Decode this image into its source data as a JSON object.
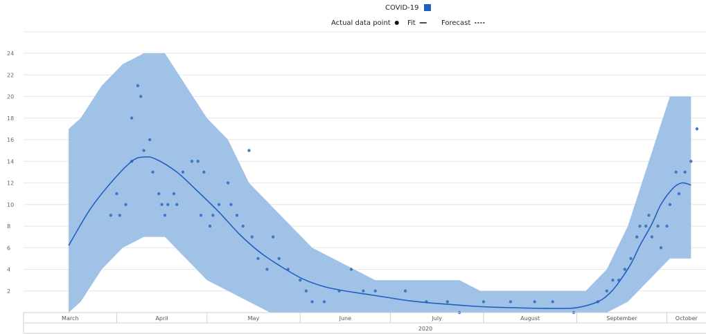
{
  "chart_data": {
    "type": "line",
    "legend": {
      "placement": "top-center",
      "series_label": "COVID-19",
      "series_color": "#1f5fbf",
      "items": [
        {
          "label": "Actual data point",
          "symbol": "dot"
        },
        {
          "label": "Fit",
          "symbol": "solid-line"
        },
        {
          "label": "Forecast",
          "symbol": "dotted-line"
        }
      ]
    },
    "y_ticks": [
      "2",
      "4",
      "6",
      "8",
      "10",
      "12",
      "14",
      "16",
      "18",
      "20",
      "22",
      "24"
    ],
    "ylim": [
      0,
      24
    ],
    "grid": true,
    "x_axis": {
      "months": [
        "March",
        "April",
        "May",
        "June",
        "July",
        "August",
        "September",
        "October"
      ],
      "year": "2020"
    },
    "colors": {
      "band": "#9bbfe5",
      "line": "#1f5fbf",
      "points": "#3f78c6",
      "grid": "#e6e6e6"
    },
    "fit": {
      "x": [
        "2020-03-16",
        "2020-03-23",
        "2020-03-30",
        "2020-04-06",
        "2020-04-10",
        "2020-04-14",
        "2020-04-21",
        "2020-04-28",
        "2020-05-05",
        "2020-05-12",
        "2020-05-19",
        "2020-05-26",
        "2020-06-02",
        "2020-06-09",
        "2020-06-16",
        "2020-06-23",
        "2020-06-30",
        "2020-07-07",
        "2020-07-14",
        "2020-07-21",
        "2020-07-28",
        "2020-08-04",
        "2020-08-11",
        "2020-08-18",
        "2020-08-25",
        "2020-09-01",
        "2020-09-08",
        "2020-09-12",
        "2020-09-15",
        "2020-09-19",
        "2020-09-22",
        "2020-09-26",
        "2020-09-29",
        "2020-10-03",
        "2020-10-06",
        "2020-10-09"
      ],
      "y": [
        6.2,
        9.5,
        12,
        14,
        14.4,
        14.2,
        13,
        11.2,
        9.3,
        7.2,
        5.5,
        4.2,
        3.1,
        2.4,
        2.0,
        1.7,
        1.4,
        1.1,
        0.9,
        0.75,
        0.6,
        0.5,
        0.45,
        0.4,
        0.38,
        0.45,
        1.0,
        1.8,
        2.8,
        4.5,
        6.2,
        8.2,
        10,
        11.5,
        12,
        11.8
      ]
    },
    "band": {
      "x": [
        "2020-03-16",
        "2020-03-20",
        "2020-03-27",
        "2020-04-03",
        "2020-04-10",
        "2020-04-17",
        "2020-04-24",
        "2020-05-01",
        "2020-05-08",
        "2020-05-15",
        "2020-05-22",
        "2020-05-29",
        "2020-06-05",
        "2020-06-12",
        "2020-06-19",
        "2020-06-26",
        "2020-07-03",
        "2020-07-10",
        "2020-07-17",
        "2020-07-24",
        "2020-07-31",
        "2020-08-07",
        "2020-08-14",
        "2020-08-21",
        "2020-08-28",
        "2020-09-04",
        "2020-09-11",
        "2020-09-18",
        "2020-09-25",
        "2020-10-02",
        "2020-10-09"
      ],
      "upper": [
        17,
        18,
        21,
        23,
        24,
        24,
        21,
        18,
        16,
        12,
        10,
        8,
        6,
        5,
        4,
        3,
        3,
        3,
        3,
        3,
        2,
        2,
        2,
        2,
        2,
        2,
        4,
        8,
        14,
        20,
        20
      ],
      "lower": [
        0,
        1,
        4,
        6,
        7,
        7,
        5,
        3,
        2,
        1,
        0,
        0,
        0,
        0,
        0,
        0,
        0,
        0,
        0,
        0,
        0,
        0,
        0,
        0,
        0,
        0,
        0,
        1,
        3,
        5,
        5
      ]
    },
    "points": [
      {
        "x": "2020-03-30",
        "y": 9
      },
      {
        "x": "2020-04-01",
        "y": 11
      },
      {
        "x": "2020-04-02",
        "y": 9
      },
      {
        "x": "2020-04-04",
        "y": 10
      },
      {
        "x": "2020-04-06",
        "y": 14
      },
      {
        "x": "2020-04-06",
        "y": 18
      },
      {
        "x": "2020-04-08",
        "y": 21
      },
      {
        "x": "2020-04-09",
        "y": 20
      },
      {
        "x": "2020-04-10",
        "y": 15
      },
      {
        "x": "2020-04-12",
        "y": 16
      },
      {
        "x": "2020-04-13",
        "y": 13
      },
      {
        "x": "2020-04-15",
        "y": 11
      },
      {
        "x": "2020-04-16",
        "y": 10
      },
      {
        "x": "2020-04-17",
        "y": 9
      },
      {
        "x": "2020-04-18",
        "y": 10
      },
      {
        "x": "2020-04-20",
        "y": 11
      },
      {
        "x": "2020-04-21",
        "y": 10
      },
      {
        "x": "2020-04-23",
        "y": 13
      },
      {
        "x": "2020-04-26",
        "y": 14
      },
      {
        "x": "2020-04-28",
        "y": 14
      },
      {
        "x": "2020-04-29",
        "y": 9
      },
      {
        "x": "2020-04-30",
        "y": 13
      },
      {
        "x": "2020-05-02",
        "y": 8
      },
      {
        "x": "2020-05-03",
        "y": 9
      },
      {
        "x": "2020-05-05",
        "y": 10
      },
      {
        "x": "2020-05-08",
        "y": 12
      },
      {
        "x": "2020-05-09",
        "y": 10
      },
      {
        "x": "2020-05-11",
        "y": 9
      },
      {
        "x": "2020-05-13",
        "y": 8
      },
      {
        "x": "2020-05-15",
        "y": 15
      },
      {
        "x": "2020-05-16",
        "y": 7
      },
      {
        "x": "2020-05-18",
        "y": 5
      },
      {
        "x": "2020-05-21",
        "y": 4
      },
      {
        "x": "2020-05-23",
        "y": 7
      },
      {
        "x": "2020-05-25",
        "y": 5
      },
      {
        "x": "2020-05-28",
        "y": 4
      },
      {
        "x": "2020-06-01",
        "y": 3
      },
      {
        "x": "2020-06-03",
        "y": 2
      },
      {
        "x": "2020-06-05",
        "y": 1
      },
      {
        "x": "2020-06-09",
        "y": 1
      },
      {
        "x": "2020-06-14",
        "y": 2
      },
      {
        "x": "2020-06-18",
        "y": 4
      },
      {
        "x": "2020-06-22",
        "y": 2
      },
      {
        "x": "2020-06-26",
        "y": 2
      },
      {
        "x": "2020-07-06",
        "y": 2
      },
      {
        "x": "2020-07-13",
        "y": 1
      },
      {
        "x": "2020-07-20",
        "y": 1
      },
      {
        "x": "2020-07-24",
        "y": 0
      },
      {
        "x": "2020-08-01",
        "y": 1
      },
      {
        "x": "2020-08-10",
        "y": 1
      },
      {
        "x": "2020-08-18",
        "y": 1
      },
      {
        "x": "2020-08-24",
        "y": 1
      },
      {
        "x": "2020-08-31",
        "y": 0
      },
      {
        "x": "2020-09-08",
        "y": 1
      },
      {
        "x": "2020-09-11",
        "y": 2
      },
      {
        "x": "2020-09-13",
        "y": 3
      },
      {
        "x": "2020-09-15",
        "y": 3
      },
      {
        "x": "2020-09-17",
        "y": 4
      },
      {
        "x": "2020-09-19",
        "y": 5
      },
      {
        "x": "2020-09-21",
        "y": 7
      },
      {
        "x": "2020-09-22",
        "y": 8
      },
      {
        "x": "2020-09-24",
        "y": 8
      },
      {
        "x": "2020-09-25",
        "y": 9
      },
      {
        "x": "2020-09-26",
        "y": 7
      },
      {
        "x": "2020-09-28",
        "y": 8
      },
      {
        "x": "2020-09-29",
        "y": 6
      },
      {
        "x": "2020-10-01",
        "y": 8
      },
      {
        "x": "2020-10-02",
        "y": 10
      },
      {
        "x": "2020-10-04",
        "y": 13
      },
      {
        "x": "2020-10-05",
        "y": 11
      },
      {
        "x": "2020-10-07",
        "y": 13
      },
      {
        "x": "2020-10-09",
        "y": 14
      },
      {
        "x": "2020-10-11",
        "y": 17
      }
    ]
  }
}
